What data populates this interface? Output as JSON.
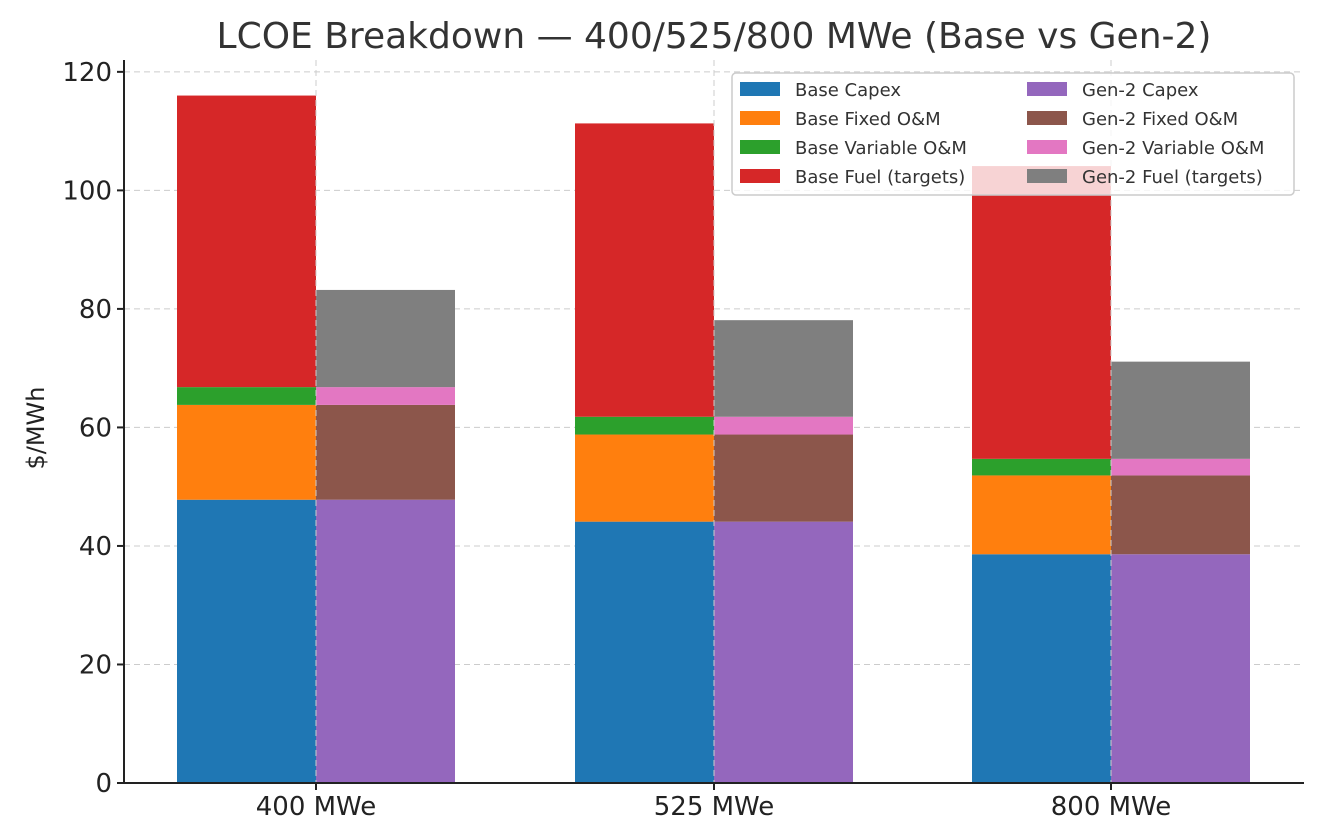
{
  "chart_data": {
    "type": "bar",
    "stacked": true,
    "grouped": true,
    "title": "LCOE Breakdown — 400/525/800 MWe (Base vs Gen-2)",
    "xlabel": "",
    "ylabel": "$/MWh",
    "ylim": [
      0,
      122
    ],
    "yticks": [
      0,
      20,
      40,
      60,
      80,
      100,
      120
    ],
    "grid": true,
    "legend_position": "top-right",
    "categories": [
      "400 MWe",
      "525 MWe",
      "800 MWe"
    ],
    "groups": [
      {
        "name": "Base",
        "series": [
          {
            "name": "Base Capex",
            "color": "#1f77b4",
            "values": [
              47.8,
              44.1,
              38.6
            ]
          },
          {
            "name": "Base Fixed O&M",
            "color": "#ff7f0e",
            "values": [
              16.0,
              14.7,
              13.3
            ]
          },
          {
            "name": "Base Variable O&M",
            "color": "#2ca02c",
            "values": [
              3.0,
              3.0,
              2.8
            ]
          },
          {
            "name": "Base Fuel (targets)",
            "color": "#d62728",
            "values": [
              49.2,
              49.5,
              49.4
            ]
          }
        ]
      },
      {
        "name": "Gen-2",
        "series": [
          {
            "name": "Gen-2 Capex",
            "color": "#9467bd",
            "values": [
              47.8,
              44.1,
              38.6
            ]
          },
          {
            "name": "Gen-2 Fixed O&M",
            "color": "#8c564b",
            "values": [
              16.0,
              14.7,
              13.3
            ]
          },
          {
            "name": "Gen-2 Variable O&M",
            "color": "#e377c2",
            "values": [
              3.0,
              3.0,
              2.8
            ]
          },
          {
            "name": "Gen-2 Fuel (targets)",
            "color": "#7f7f7f",
            "values": [
              16.4,
              16.3,
              16.4
            ]
          }
        ]
      }
    ]
  }
}
